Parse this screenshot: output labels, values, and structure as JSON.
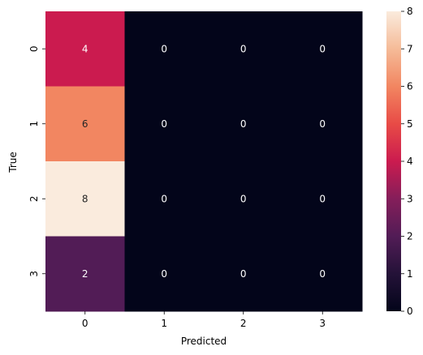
{
  "chart_data": {
    "type": "heatmap",
    "title": "",
    "xlabel": "Predicted",
    "ylabel": "True",
    "x_categories": [
      "0",
      "1",
      "2",
      "3"
    ],
    "y_categories": [
      "0",
      "1",
      "2",
      "3"
    ],
    "matrix": [
      [
        4,
        0,
        0,
        0
      ],
      [
        6,
        0,
        0,
        0
      ],
      [
        8,
        0,
        0,
        0
      ],
      [
        2,
        0,
        0,
        0
      ]
    ],
    "annotate": true,
    "colorbar": {
      "min": 0,
      "max": 8,
      "ticks": [
        "0",
        "1",
        "2",
        "3",
        "4",
        "5",
        "6",
        "7",
        "8"
      ]
    },
    "colormap": "rocket",
    "colors": {
      "low": "#03051a",
      "high": "#faebdd"
    }
  }
}
